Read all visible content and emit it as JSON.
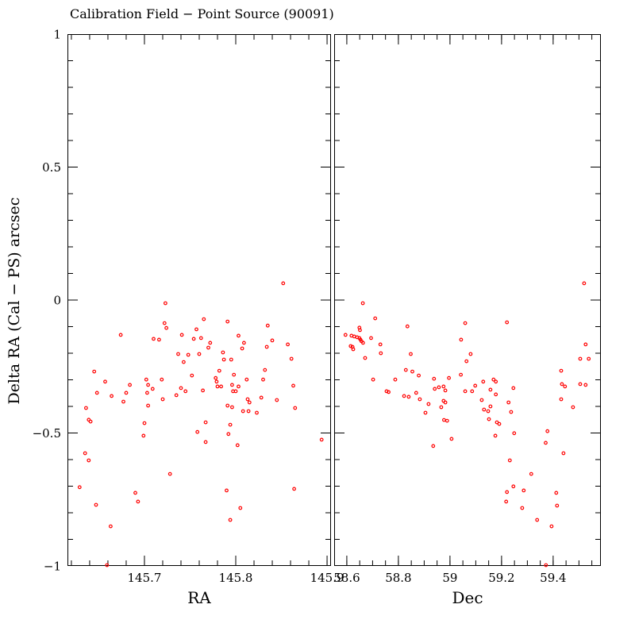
{
  "chart_data": {
    "type": "scatter",
    "title": "Calibration Field − Point Source (90091)",
    "ylabel": "Delta RA (Cal − PS) arcsec",
    "point_color": "#ff0000",
    "axis_color": "#000000",
    "marker": "open-circle",
    "legend": "none",
    "grid": false,
    "ylim": [
      -1,
      1
    ],
    "y_tick_values": [
      1,
      0.5,
      0,
      -0.5,
      -1
    ],
    "y_tick_labels": [
      "1",
      "0.5",
      "0",
      "−0.5",
      "−1"
    ],
    "y_minor_step": 0.1,
    "panels": [
      {
        "xlabel": "RA",
        "xlim": [
          145.6157,
          145.9043
        ],
        "x_tick_values": [
          145.7,
          145.8,
          145.9
        ],
        "x_tick_labels": [
          "145.7",
          "145.8",
          "145.9"
        ],
        "x_minor_step": 0.02,
        "show_y_labels": true,
        "points": [
          [
            145.723,
            -0.012
          ],
          [
            145.722,
            -0.087
          ],
          [
            145.724,
            -0.105
          ],
          [
            145.757,
            -0.11
          ],
          [
            145.674,
            -0.131
          ],
          [
            145.71,
            -0.146
          ],
          [
            145.716,
            -0.149
          ],
          [
            145.741,
            -0.131
          ],
          [
            145.754,
            -0.146
          ],
          [
            145.762,
            -0.143
          ],
          [
            145.737,
            -0.203
          ],
          [
            145.748,
            -0.206
          ],
          [
            145.76,
            -0.203
          ],
          [
            145.743,
            -0.233
          ],
          [
            145.645,
            -0.269
          ],
          [
            145.752,
            -0.284
          ],
          [
            145.657,
            -0.307
          ],
          [
            145.702,
            -0.299
          ],
          [
            145.719,
            -0.299
          ],
          [
            145.704,
            -0.319
          ],
          [
            145.684,
            -0.319
          ],
          [
            145.709,
            -0.334
          ],
          [
            145.703,
            -0.349
          ],
          [
            145.648,
            -0.349
          ],
          [
            145.68,
            -0.349
          ],
          [
            145.74,
            -0.331
          ],
          [
            145.745,
            -0.343
          ],
          [
            145.735,
            -0.358
          ],
          [
            145.664,
            -0.361
          ],
          [
            145.72,
            -0.373
          ],
          [
            145.677,
            -0.382
          ],
          [
            145.704,
            -0.397
          ],
          [
            145.636,
            -0.406
          ],
          [
            145.639,
            -0.45
          ],
          [
            145.641,
            -0.457
          ],
          [
            145.7,
            -0.463
          ],
          [
            145.852,
            0.063
          ],
          [
            145.765,
            -0.072
          ],
          [
            145.791,
            -0.081
          ],
          [
            145.835,
            -0.096
          ],
          [
            145.803,
            -0.134
          ],
          [
            145.772,
            -0.161
          ],
          [
            145.77,
            -0.179
          ],
          [
            145.84,
            -0.152
          ],
          [
            145.857,
            -0.167
          ],
          [
            145.809,
            -0.161
          ],
          [
            145.807,
            -0.182
          ],
          [
            145.834,
            -0.176
          ],
          [
            145.786,
            -0.197
          ],
          [
            145.787,
            -0.224
          ],
          [
            145.795,
            -0.224
          ],
          [
            145.861,
            -0.221
          ],
          [
            145.782,
            -0.266
          ],
          [
            145.832,
            -0.263
          ],
          [
            145.798,
            -0.281
          ],
          [
            145.778,
            -0.293
          ],
          [
            145.779,
            -0.307
          ],
          [
            145.812,
            -0.299
          ],
          [
            145.83,
            -0.299
          ],
          [
            145.78,
            -0.325
          ],
          [
            145.784,
            -0.325
          ],
          [
            145.796,
            -0.319
          ],
          [
            145.803,
            -0.325
          ],
          [
            145.764,
            -0.34
          ],
          [
            145.863,
            -0.322
          ],
          [
            145.797,
            -0.343
          ],
          [
            145.8,
            -0.343
          ],
          [
            145.813,
            -0.373
          ],
          [
            145.815,
            -0.385
          ],
          [
            145.828,
            -0.367
          ],
          [
            145.845,
            -0.376
          ],
          [
            145.791,
            -0.397
          ],
          [
            145.796,
            -0.403
          ],
          [
            145.808,
            -0.418
          ],
          [
            145.814,
            -0.418
          ],
          [
            145.823,
            -0.424
          ],
          [
            145.865,
            -0.406
          ],
          [
            145.767,
            -0.46
          ],
          [
            145.794,
            -0.469
          ],
          [
            145.699,
            -0.51
          ],
          [
            145.758,
            -0.496
          ],
          [
            145.635,
            -0.576
          ],
          [
            145.639,
            -0.603
          ],
          [
            145.728,
            -0.654
          ],
          [
            145.629,
            -0.704
          ],
          [
            145.69,
            -0.725
          ],
          [
            145.693,
            -0.758
          ],
          [
            145.647,
            -0.77
          ],
          [
            145.663,
            -0.851
          ],
          [
            145.659,
            -0.997
          ],
          [
            145.792,
            -0.504
          ],
          [
            145.767,
            -0.534
          ],
          [
            145.802,
            -0.546
          ],
          [
            145.894,
            -0.525
          ],
          [
            145.79,
            -0.716
          ],
          [
            145.864,
            -0.71
          ],
          [
            145.805,
            -0.782
          ],
          [
            145.794,
            -0.827
          ]
        ]
      },
      {
        "xlabel": "Dec",
        "xlim": [
          58.551,
          59.585
        ],
        "x_tick_values": [
          58.6,
          58.8,
          59,
          59.2,
          59.4
        ],
        "x_tick_labels": [
          "58.6",
          "58.8",
          "59",
          "59.2",
          "59.4"
        ],
        "x_minor_step": 0.05,
        "show_y_labels": false,
        "points": [
          [
            58.662,
            -0.012
          ],
          [
            58.71,
            -0.069
          ],
          [
            58.649,
            -0.104
          ],
          [
            58.651,
            -0.113
          ],
          [
            58.835,
            -0.099
          ],
          [
            58.595,
            -0.131
          ],
          [
            58.618,
            -0.134
          ],
          [
            58.629,
            -0.137
          ],
          [
            58.64,
            -0.14
          ],
          [
            58.649,
            -0.143
          ],
          [
            58.653,
            -0.149
          ],
          [
            58.657,
            -0.155
          ],
          [
            58.694,
            -0.143
          ],
          [
            58.663,
            -0.161
          ],
          [
            58.615,
            -0.173
          ],
          [
            58.622,
            -0.176
          ],
          [
            58.625,
            -0.185
          ],
          [
            58.73,
            -0.167
          ],
          [
            58.732,
            -0.2
          ],
          [
            58.671,
            -0.218
          ],
          [
            58.848,
            -0.203
          ],
          [
            59.059,
            -0.087
          ],
          [
            59.043,
            -0.149
          ],
          [
            59.064,
            -0.23
          ],
          [
            58.829,
            -0.263
          ],
          [
            58.854,
            -0.269
          ],
          [
            58.879,
            -0.284
          ],
          [
            58.702,
            -0.299
          ],
          [
            58.788,
            -0.299
          ],
          [
            58.938,
            -0.296
          ],
          [
            58.996,
            -0.293
          ],
          [
            59.042,
            -0.281
          ],
          [
            58.941,
            -0.334
          ],
          [
            58.957,
            -0.328
          ],
          [
            58.975,
            -0.325
          ],
          [
            58.982,
            -0.34
          ],
          [
            58.754,
            -0.343
          ],
          [
            58.762,
            -0.346
          ],
          [
            58.869,
            -0.349
          ],
          [
            58.822,
            -0.361
          ],
          [
            58.84,
            -0.364
          ],
          [
            58.883,
            -0.373
          ],
          [
            58.917,
            -0.391
          ],
          [
            58.975,
            -0.379
          ],
          [
            58.982,
            -0.385
          ],
          [
            58.966,
            -0.403
          ],
          [
            58.905,
            -0.424
          ],
          [
            59.059,
            -0.343
          ],
          [
            58.977,
            -0.451
          ],
          [
            58.989,
            -0.454
          ],
          [
            59.52,
            0.063
          ],
          [
            59.221,
            -0.084
          ],
          [
            59.08,
            -0.203
          ],
          [
            59.526,
            -0.167
          ],
          [
            59.505,
            -0.221
          ],
          [
            59.538,
            -0.221
          ],
          [
            59.431,
            -0.266
          ],
          [
            59.169,
            -0.299
          ],
          [
            59.178,
            -0.307
          ],
          [
            59.129,
            -0.307
          ],
          [
            59.098,
            -0.322
          ],
          [
            59.434,
            -0.316
          ],
          [
            59.446,
            -0.325
          ],
          [
            59.505,
            -0.316
          ],
          [
            59.526,
            -0.319
          ],
          [
            59.086,
            -0.343
          ],
          [
            59.157,
            -0.337
          ],
          [
            59.246,
            -0.331
          ],
          [
            59.178,
            -0.355
          ],
          [
            59.123,
            -0.376
          ],
          [
            59.431,
            -0.373
          ],
          [
            59.227,
            -0.385
          ],
          [
            59.132,
            -0.412
          ],
          [
            59.148,
            -0.418
          ],
          [
            59.157,
            -0.4
          ],
          [
            59.477,
            -0.403
          ],
          [
            59.237,
            -0.421
          ],
          [
            59.151,
            -0.448
          ],
          [
            59.182,
            -0.46
          ],
          [
            59.191,
            -0.466
          ],
          [
            58.935,
            -0.549
          ],
          [
            59.006,
            -0.522
          ],
          [
            59.176,
            -0.51
          ],
          [
            59.249,
            -0.501
          ],
          [
            59.378,
            -0.493
          ],
          [
            59.371,
            -0.537
          ],
          [
            59.44,
            -0.576
          ],
          [
            59.232,
            -0.603
          ],
          [
            59.315,
            -0.654
          ],
          [
            59.246,
            -0.701
          ],
          [
            59.286,
            -0.716
          ],
          [
            59.221,
            -0.722
          ],
          [
            59.412,
            -0.725
          ],
          [
            59.218,
            -0.758
          ],
          [
            59.415,
            -0.773
          ],
          [
            59.28,
            -0.782
          ],
          [
            59.338,
            -0.827
          ],
          [
            59.394,
            -0.851
          ],
          [
            59.372,
            -0.997
          ]
        ]
      }
    ]
  }
}
